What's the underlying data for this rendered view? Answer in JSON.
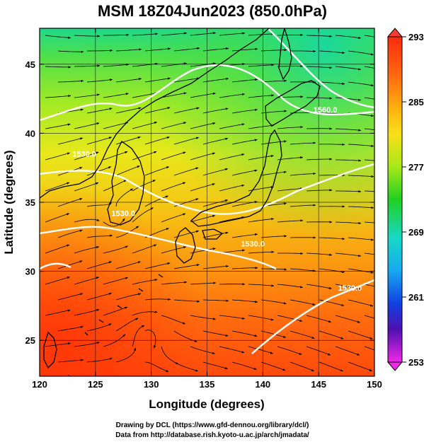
{
  "title": "MSM 18Z04Jun2023 (850.0hPa)",
  "xlabel": "Longitude (degrees)",
  "ylabel": "Latitude  (degrees)",
  "x_ticks": [
    120,
    125,
    130,
    135,
    140,
    145,
    150
  ],
  "y_ticks": [
    25,
    30,
    35,
    40,
    45
  ],
  "xlim": [
    120,
    150
  ],
  "ylim": [
    22.4,
    47.6
  ],
  "colorbar": {
    "ticks": [
      293,
      285,
      277,
      269,
      261,
      253
    ],
    "range": [
      253,
      293
    ],
    "colors": [
      "#ff3010",
      "#ff7a10",
      "#ffd010",
      "#c8ec18",
      "#20d020",
      "#20d8c0",
      "#1060f0",
      "#3010c0",
      "#c010c0",
      "#ff40e0"
    ]
  },
  "contours": [
    {
      "label": "1560.0",
      "lon": 145.6,
      "lat": 41.5
    },
    {
      "label": "1530.0",
      "lon": 139.1,
      "lat": 31.8
    },
    {
      "label": "1530.0",
      "lon": 124.0,
      "lat": 38.3
    },
    {
      "label": "1530.0",
      "lon": 127.5,
      "lat": 34.0
    },
    {
      "label": "1530.0",
      "lon": 147.8,
      "lat": 28.6
    }
  ],
  "credits": {
    "line1": "Drawing by DCL (https://www.gfd-dennou.org/library/dcl/)",
    "line2": "Data from http://database.rish.kyoto-u.ac.jp/arch/jmadata/"
  }
}
